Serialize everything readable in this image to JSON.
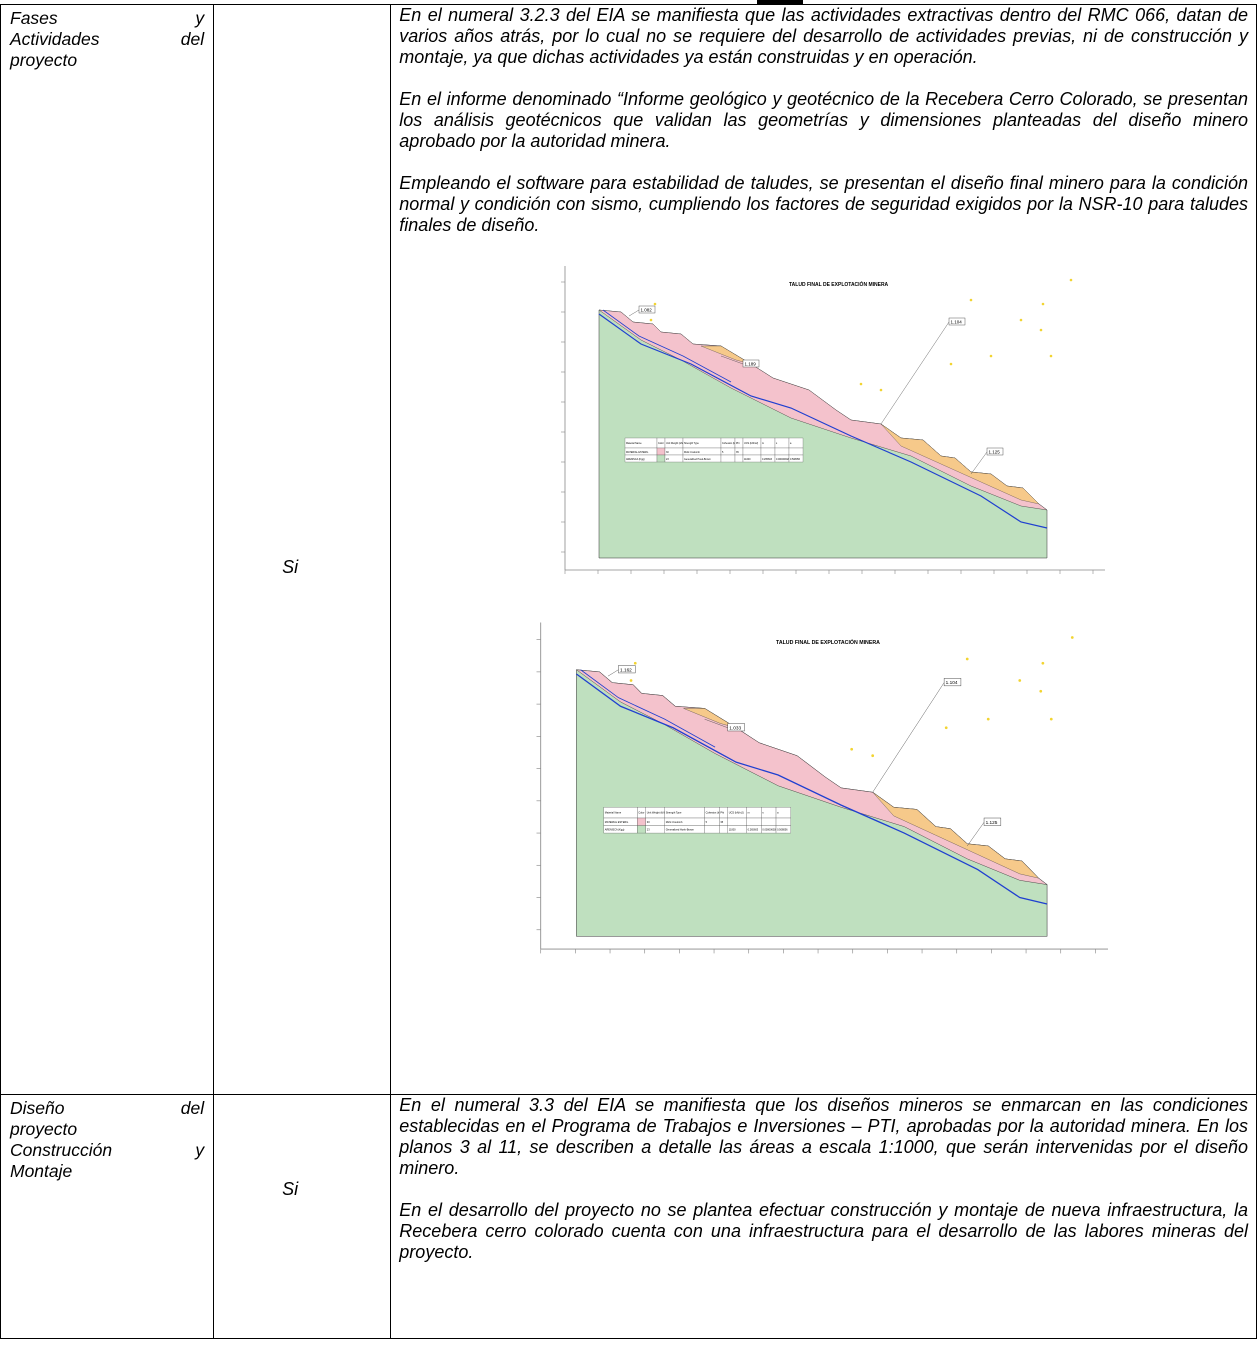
{
  "rows": [
    {
      "phase_line1_left": "Fases",
      "phase_line1_right": "y",
      "phase_line2_left": "Actividades",
      "phase_line2_right": "del",
      "phase_line3": "proyecto",
      "applies": "Si",
      "paragraphs": [
        "En el numeral 3.2.3 del EIA se manifiesta que las actividades extractivas dentro del RMC 066, datan de varios años atrás, por lo cual no se requiere del desarrollo de actividades previas, ni de construcción y montaje, ya que dichas actividades ya están construidas y en operación.",
        "En el informe denominado “Informe geológico y geotécnico de la Recebera Cerro Colorado, se presentan los análisis geotécnicos que validan las geometrías y dimensiones planteadas del diseño minero aprobado por la autoridad minera.",
        "Empleando el software para estabilidad de taludes, se presentan el diseño final minero para la condición normal y condición con sismo, cumpliendo los factores de seguridad exigidos por la NSR-10 para taludes finales de diseño."
      ]
    },
    {
      "phase_line1_left": "Diseño",
      "phase_line1_right": "del",
      "phase_line2": "proyecto",
      "phase_line3_left": "Construcción",
      "phase_line3_right": "y",
      "phase_line4": "Montaje",
      "applies": "Si",
      "paragraphs": [
        "En el numeral 3.3 del EIA se manifiesta que los diseños mineros se enmarcan en las condiciones establecidas en el Programa de Trabajos e Inversiones – PTI, aprobadas por la autoridad minera. En los planos 3 al 11, se describen a detalle las áreas a escala 1:1000, que serán intervenidas por el diseño minero.",
        "En el desarrollo del proyecto no se plantea efectuar construcción y montaje de nueva infraestructura, la Recebera cerro colorado cuenta con una infraestructura para el desarrollo de las labores mineras del proyecto."
      ]
    }
  ],
  "figures": [
    {
      "title": "TALUD FINAL DE EXPLOTACIÓN MINERA",
      "fs_labels": [
        "1.082",
        "1.189",
        "1.104",
        "1.125"
      ],
      "table_headers": [
        "Material Name",
        "Color",
        "Unit Weight (kN/m3)",
        "Strength Type",
        "Cohesion (kN/m2)",
        "Phi",
        "UCS (kN/m2)",
        "m",
        "s",
        "a"
      ],
      "table_rows": [
        [
          "MATERIAL ESTERIL",
          "",
          "30",
          "Mohr-Coulomb",
          "5",
          "35",
          "",
          "",
          "",
          ""
        ],
        [
          "ARENISCA (Kgg)",
          "",
          "23",
          "Generalized Hoek-Brown",
          "",
          "",
          "11000",
          "0.265603",
          "0.000006026",
          "0.508056"
        ]
      ]
    },
    {
      "title": "TALUD FINAL DE EXPLOTACIÓN MINERA",
      "fs_labels": [
        "1.162",
        "1.033",
        "1.104",
        "1.125"
      ],
      "table_headers": [
        "Material Name",
        "Color",
        "Unit Weight (kN/m3)",
        "Strength Type",
        "Cohesion (kN/m2)",
        "Phi",
        "UCS (kN/m2)",
        "m",
        "s",
        "a"
      ],
      "table_rows": [
        [
          "MATERIAL ESTERIL",
          "",
          "30",
          "Mohr-Coulomb",
          "5",
          "35",
          "",
          "",
          "",
          ""
        ],
        [
          "ARENISCA (Kgg)",
          "",
          "23",
          "Generalized Hoek-Brown",
          "",
          "",
          "11000",
          "0.265603",
          "0.000006026",
          "0.508056"
        ]
      ]
    }
  ]
}
